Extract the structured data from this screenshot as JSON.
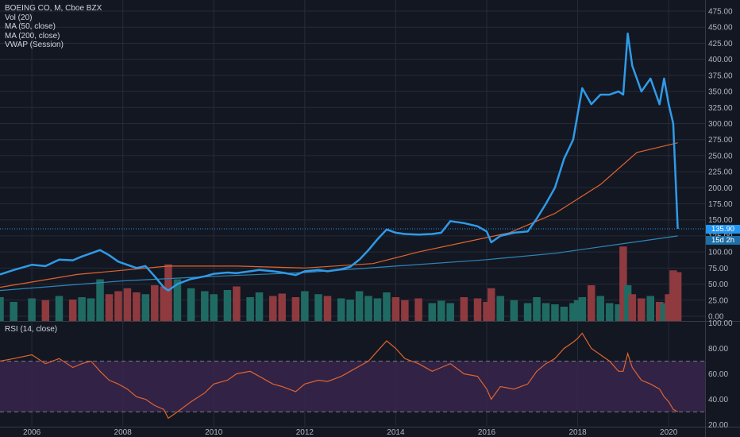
{
  "header": {
    "symbol": "BOEING CO, M, Cboe BZX",
    "indicators": [
      "Vol (20)",
      "MA (50, close)",
      "MA (200, close)",
      "VWAP (Session)"
    ],
    "rsi_label": "RSI (14, close)"
  },
  "colors": {
    "background": "#131722",
    "grid": "#262b3a",
    "price_line": "#2f9be8",
    "ma50": "#e0642d",
    "ma200": "#2e86b8",
    "rsi_line": "#e0642d",
    "rsi_band": "#3a2650",
    "vol_up": "#1f6b63",
    "vol_down": "#8f3a3f",
    "price_tag": "#2196f3",
    "ma_tag": "#1e6fa5"
  },
  "price_tags": {
    "last_price": "135.90",
    "ma200_value": "15d 2h"
  },
  "chart_data": [
    {
      "type": "line",
      "panel": "price",
      "xlim": [
        2005.3,
        2020.8
      ],
      "ylim": [
        -5,
        480
      ],
      "y_ticks": [
        "0.00",
        "25.00",
        "50.00",
        "75.00",
        "100.00",
        "125.00",
        "150.00",
        "175.00",
        "200.00",
        "225.00",
        "250.00",
        "275.00",
        "300.00",
        "325.00",
        "350.00",
        "375.00",
        "400.00",
        "425.00",
        "450.00",
        "475.00"
      ],
      "y_tick_values": [
        0,
        25,
        50,
        75,
        100,
        125,
        150,
        175,
        200,
        225,
        250,
        275,
        300,
        325,
        350,
        375,
        400,
        425,
        450,
        475
      ],
      "x_ticks": [
        "2006",
        "2008",
        "2010",
        "2012",
        "2014",
        "2016",
        "2018",
        "2020"
      ],
      "x_tick_values": [
        2006,
        2008,
        2010,
        2012,
        2014,
        2016,
        2018,
        2020
      ],
      "series": [
        {
          "key": "close",
          "x": [
            2005.3,
            2005.6,
            2006.0,
            2006.3,
            2006.6,
            2006.9,
            2007.1,
            2007.3,
            2007.5,
            2007.7,
            2007.9,
            2008.1,
            2008.3,
            2008.5,
            2008.7,
            2008.9,
            2009.0,
            2009.2,
            2009.5,
            2009.8,
            2010.0,
            2010.3,
            2010.5,
            2010.8,
            2011.0,
            2011.3,
            2011.5,
            2011.8,
            2012.0,
            2012.3,
            2012.5,
            2012.8,
            2013.0,
            2013.2,
            2013.4,
            2013.6,
            2013.8,
            2014.0,
            2014.2,
            2014.5,
            2014.8,
            2015.0,
            2015.2,
            2015.5,
            2015.8,
            2016.0,
            2016.1,
            2016.3,
            2016.6,
            2016.9,
            2017.1,
            2017.3,
            2017.5,
            2017.7,
            2017.9,
            2018.0,
            2018.1,
            2018.3,
            2018.5,
            2018.7,
            2018.9,
            2019.0,
            2019.1,
            2019.2,
            2019.4,
            2019.6,
            2019.8,
            2019.9,
            2020.0,
            2020.1,
            2020.2
          ],
          "y": [
            65,
            72,
            80,
            78,
            88,
            87,
            93,
            98,
            103,
            95,
            85,
            80,
            75,
            78,
            62,
            45,
            40,
            50,
            58,
            62,
            66,
            68,
            67,
            70,
            72,
            70,
            68,
            64,
            70,
            72,
            70,
            73,
            77,
            88,
            103,
            120,
            135,
            130,
            128,
            127,
            128,
            130,
            148,
            145,
            140,
            132,
            115,
            125,
            130,
            132,
            152,
            175,
            200,
            245,
            275,
            315,
            355,
            330,
            345,
            345,
            350,
            345,
            440,
            390,
            350,
            370,
            330,
            370,
            330,
            300,
            136
          ]
        },
        {
          "key": "ma50",
          "x": [
            2005.3,
            2007.0,
            2009.0,
            2010.5,
            2012.0,
            2013.5,
            2014.5,
            2015.5,
            2016.5,
            2017.5,
            2018.5,
            2019.3,
            2020.2
          ],
          "y": [
            45,
            65,
            78,
            78,
            75,
            82,
            100,
            115,
            130,
            160,
            205,
            255,
            270
          ]
        },
        {
          "key": "ma200",
          "x": [
            2005.3,
            2008.0,
            2010.0,
            2012.0,
            2014.0,
            2016.0,
            2017.5,
            2018.5,
            2019.5,
            2020.2
          ],
          "y": [
            40,
            55,
            62,
            68,
            78,
            88,
            98,
            108,
            118,
            125
          ]
        }
      ],
      "volume": {
        "ylim": [
          0,
          160
        ],
        "x": [
          2005.3,
          2005.6,
          2006.0,
          2006.3,
          2006.6,
          2006.9,
          2007.1,
          2007.3,
          2007.5,
          2007.7,
          2007.9,
          2008.1,
          2008.3,
          2008.5,
          2008.7,
          2008.9,
          2009.0,
          2009.2,
          2009.5,
          2009.8,
          2010.0,
          2010.3,
          2010.5,
          2010.8,
          2011.0,
          2011.3,
          2011.5,
          2011.8,
          2012.0,
          2012.3,
          2012.5,
          2012.8,
          2013.0,
          2013.2,
          2013.4,
          2013.6,
          2013.8,
          2014.0,
          2014.2,
          2014.5,
          2014.8,
          2015.0,
          2015.2,
          2015.5,
          2015.8,
          2016.0,
          2016.1,
          2016.3,
          2016.6,
          2016.9,
          2017.1,
          2017.3,
          2017.5,
          2017.7,
          2017.9,
          2018.0,
          2018.1,
          2018.3,
          2018.5,
          2018.7,
          2018.9,
          2019.0,
          2019.1,
          2019.2,
          2019.4,
          2019.6,
          2019.8,
          2019.9,
          2020.0,
          2020.1,
          2020.2
        ],
        "values": [
          40,
          32,
          38,
          35,
          42,
          36,
          40,
          38,
          70,
          45,
          50,
          55,
          48,
          45,
          60,
          58,
          95,
          70,
          55,
          50,
          45,
          52,
          58,
          40,
          48,
          42,
          46,
          40,
          50,
          45,
          42,
          38,
          36,
          50,
          42,
          38,
          48,
          40,
          35,
          38,
          30,
          34,
          30,
          40,
          38,
          32,
          55,
          42,
          35,
          30,
          40,
          30,
          28,
          24,
          30,
          35,
          40,
          60,
          42,
          30,
          28,
          125,
          60,
          45,
          38,
          42,
          32,
          30,
          45,
          85,
          82
        ]
      }
    },
    {
      "type": "line",
      "panel": "rsi",
      "ylim": [
        19,
        101
      ],
      "y_ticks": [
        "20.00",
        "40.00",
        "60.00",
        "80.00",
        "100.00"
      ],
      "y_tick_values": [
        20,
        40,
        60,
        80,
        100
      ],
      "band": [
        30,
        70
      ],
      "series": [
        {
          "key": "rsi",
          "x": [
            2005.3,
            2005.6,
            2006.0,
            2006.3,
            2006.6,
            2006.9,
            2007.1,
            2007.3,
            2007.5,
            2007.7,
            2007.9,
            2008.1,
            2008.3,
            2008.5,
            2008.7,
            2008.9,
            2009.0,
            2009.2,
            2009.5,
            2009.8,
            2010.0,
            2010.3,
            2010.5,
            2010.8,
            2011.0,
            2011.3,
            2011.5,
            2011.8,
            2012.0,
            2012.3,
            2012.5,
            2012.8,
            2013.0,
            2013.2,
            2013.4,
            2013.6,
            2013.8,
            2014.0,
            2014.2,
            2014.5,
            2014.8,
            2015.0,
            2015.2,
            2015.5,
            2015.8,
            2016.0,
            2016.1,
            2016.3,
            2016.6,
            2016.9,
            2017.1,
            2017.3,
            2017.5,
            2017.7,
            2017.9,
            2018.0,
            2018.1,
            2018.3,
            2018.5,
            2018.7,
            2018.9,
            2019.0,
            2019.1,
            2019.2,
            2019.4,
            2019.6,
            2019.8,
            2019.9,
            2020.0,
            2020.1,
            2020.2
          ],
          "y": [
            70,
            72,
            75,
            68,
            72,
            65,
            68,
            70,
            62,
            55,
            52,
            48,
            42,
            40,
            35,
            32,
            25,
            30,
            38,
            45,
            52,
            55,
            60,
            62,
            58,
            52,
            50,
            46,
            52,
            55,
            54,
            58,
            62,
            66,
            70,
            78,
            86,
            80,
            72,
            68,
            62,
            65,
            68,
            60,
            58,
            48,
            40,
            50,
            48,
            52,
            62,
            68,
            72,
            80,
            85,
            88,
            92,
            80,
            75,
            70,
            62,
            62,
            76,
            65,
            55,
            52,
            48,
            42,
            38,
            32,
            30
          ]
        }
      ]
    }
  ]
}
